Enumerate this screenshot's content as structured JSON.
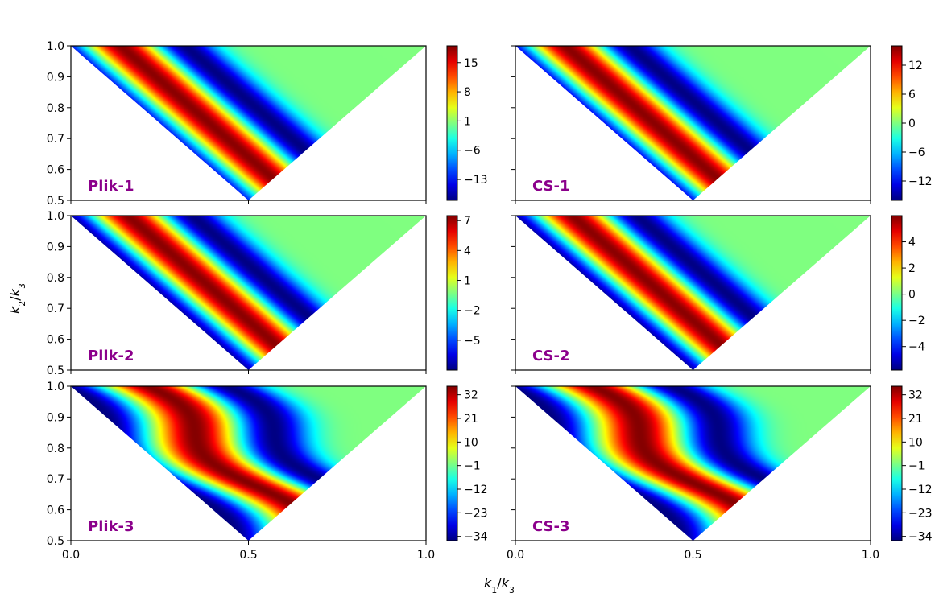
{
  "figure": {
    "xlabel": "k1/k3",
    "ylabel": "k2/k3",
    "panel_label_color": "#8b008b",
    "colormap": "jet"
  },
  "chart_data": [
    {
      "type": "heatmap",
      "panel_label": "Plik-1",
      "row": 0,
      "col": 0,
      "x_range": [
        0.0,
        1.0
      ],
      "y_range": [
        0.5,
        1.0
      ],
      "x_ticks": [
        "0.0",
        "0.5",
        "1.0"
      ],
      "y_ticks": [
        "0.5",
        "0.6",
        "0.7",
        "0.8",
        "0.9",
        "1.0"
      ],
      "show_x_ticklabels": false,
      "show_y_ticklabels": true,
      "colorbar": {
        "min": -18,
        "max": 19,
        "ticks": [
          15,
          8,
          1,
          -6,
          -13
        ],
        "tick_labels": [
          "15",
          "8",
          "1",
          "−6",
          "−13"
        ]
      },
      "pattern": {
        "bands": [
          {
            "center": 0.78,
            "amp": 1.0
          },
          {
            "center": 0.96,
            "amp": -0.95
          },
          {
            "center": 1.14,
            "amp": 1.0
          },
          {
            "center": 1.32,
            "amp": -1.0
          },
          {
            "center": 0.58,
            "amp": -0.35
          }
        ],
        "width": 0.085,
        "wiggle": 0.0
      }
    },
    {
      "type": "heatmap",
      "panel_label": "CS-1",
      "row": 0,
      "col": 1,
      "x_range": [
        0.0,
        1.0
      ],
      "y_range": [
        0.5,
        1.0
      ],
      "x_ticks": [
        "0.0",
        "0.5",
        "1.0"
      ],
      "y_ticks": [
        "0.5",
        "0.6",
        "0.7",
        "0.8",
        "0.9",
        "1.0"
      ],
      "show_x_ticklabels": false,
      "show_y_ticklabels": false,
      "colorbar": {
        "min": -16,
        "max": 16,
        "ticks": [
          12,
          6,
          0,
          -6,
          -12
        ],
        "tick_labels": [
          "12",
          "6",
          "0",
          "−6",
          "−12"
        ]
      },
      "pattern": {
        "bands": [
          {
            "center": 0.78,
            "amp": 0.8
          },
          {
            "center": 0.96,
            "amp": -1.0
          },
          {
            "center": 1.14,
            "amp": 1.0
          },
          {
            "center": 1.32,
            "amp": -1.0
          },
          {
            "center": 0.58,
            "amp": -0.25
          }
        ],
        "width": 0.085,
        "wiggle": 0.0
      }
    },
    {
      "type": "heatmap",
      "panel_label": "Plik-2",
      "row": 1,
      "col": 0,
      "x_range": [
        0.0,
        1.0
      ],
      "y_range": [
        0.5,
        1.0
      ],
      "x_ticks": [
        "0.0",
        "0.5",
        "1.0"
      ],
      "y_ticks": [
        "0.5",
        "0.6",
        "0.7",
        "0.8",
        "0.9",
        "1.0"
      ],
      "show_x_ticklabels": false,
      "show_y_ticklabels": true,
      "colorbar": {
        "min": -8,
        "max": 7.5,
        "ticks": [
          7,
          4,
          1,
          -2,
          -5
        ],
        "tick_labels": [
          "7",
          "4",
          "1",
          "−2",
          "−5"
        ]
      },
      "pattern": {
        "bands": [
          {
            "center": 0.62,
            "amp": -0.4
          },
          {
            "center": 0.8,
            "amp": 0.9
          },
          {
            "center": 0.98,
            "amp": -1.0
          },
          {
            "center": 1.16,
            "amp": 1.0
          },
          {
            "center": 1.34,
            "amp": -1.0
          }
        ],
        "width": 0.085,
        "wiggle": 0.0
      }
    },
    {
      "type": "heatmap",
      "panel_label": "CS-2",
      "row": 1,
      "col": 1,
      "x_range": [
        0.0,
        1.0
      ],
      "y_range": [
        0.5,
        1.0
      ],
      "x_ticks": [
        "0.0",
        "0.5",
        "1.0"
      ],
      "y_ticks": [
        "0.5",
        "0.6",
        "0.7",
        "0.8",
        "0.9",
        "1.0"
      ],
      "show_x_ticklabels": false,
      "show_y_ticklabels": false,
      "colorbar": {
        "min": -5.8,
        "max": 6,
        "ticks": [
          4,
          2,
          0,
          -2,
          -4
        ],
        "tick_labels": [
          "4",
          "2",
          "0",
          "−2",
          "−4"
        ]
      },
      "pattern": {
        "bands": [
          {
            "center": 0.62,
            "amp": -0.35
          },
          {
            "center": 0.8,
            "amp": 0.75
          },
          {
            "center": 0.98,
            "amp": -1.0
          },
          {
            "center": 1.16,
            "amp": 1.0
          },
          {
            "center": 1.34,
            "amp": -1.0
          }
        ],
        "width": 0.085,
        "wiggle": 0.0
      }
    },
    {
      "type": "heatmap",
      "panel_label": "Plik-3",
      "row": 2,
      "col": 0,
      "x_range": [
        0.0,
        1.0
      ],
      "y_range": [
        0.5,
        1.0
      ],
      "x_ticks": [
        "0.0",
        "0.5",
        "1.0"
      ],
      "y_ticks": [
        "0.5",
        "0.6",
        "0.7",
        "0.8",
        "0.9",
        "1.0"
      ],
      "show_x_ticklabels": true,
      "show_y_ticklabels": true,
      "colorbar": {
        "min": -36,
        "max": 36,
        "ticks": [
          32,
          21,
          10,
          -1,
          -12,
          -23,
          -34
        ],
        "tick_labels": [
          "32",
          "21",
          "10",
          "−1",
          "−12",
          "−23",
          "−34"
        ]
      },
      "pattern": {
        "bands": [
          {
            "center": 0.72,
            "amp": 0.6
          },
          {
            "center": 0.96,
            "amp": -1.0
          },
          {
            "center": 1.2,
            "amp": 1.0
          },
          {
            "center": 1.42,
            "amp": -1.0
          }
        ],
        "width": 0.1,
        "wiggle": 0.05
      }
    },
    {
      "type": "heatmap",
      "panel_label": "CS-3",
      "row": 2,
      "col": 1,
      "x_range": [
        0.0,
        1.0
      ],
      "y_range": [
        0.5,
        1.0
      ],
      "x_ticks": [
        "0.0",
        "0.5",
        "1.0"
      ],
      "y_ticks": [
        "0.5",
        "0.6",
        "0.7",
        "0.8",
        "0.9",
        "1.0"
      ],
      "show_x_ticklabels": true,
      "show_y_ticklabels": false,
      "colorbar": {
        "min": -36,
        "max": 36,
        "ticks": [
          32,
          21,
          10,
          -1,
          -12,
          -23,
          -34
        ],
        "tick_labels": [
          "32",
          "21",
          "10",
          "−1",
          "−12",
          "−23",
          "−34"
        ]
      },
      "pattern": {
        "bands": [
          {
            "center": 0.72,
            "amp": 0.6
          },
          {
            "center": 0.96,
            "amp": -1.0
          },
          {
            "center": 1.2,
            "amp": 1.0
          },
          {
            "center": 1.42,
            "amp": -1.0
          }
        ],
        "width": 0.1,
        "wiggle": 0.05
      }
    }
  ]
}
